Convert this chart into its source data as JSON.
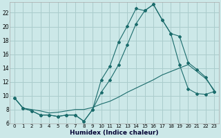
{
  "xlabel": "Humidex (Indice chaleur)",
  "background_color": "#cce8e8",
  "grid_color": "#aacccc",
  "line_color": "#1a6b6b",
  "xlim": [
    -0.5,
    23.5
  ],
  "ylim": [
    6,
    23.5
  ],
  "yticks": [
    6,
    8,
    10,
    12,
    14,
    16,
    18,
    20,
    22
  ],
  "xticks": [
    0,
    1,
    2,
    3,
    4,
    5,
    6,
    7,
    8,
    9,
    10,
    11,
    12,
    13,
    14,
    15,
    16,
    17,
    18,
    19,
    20,
    21,
    22,
    23
  ],
  "series1_x": [
    0,
    1,
    2,
    3,
    4,
    5,
    6,
    7,
    8,
    9,
    10,
    11,
    12,
    13,
    14,
    15,
    16,
    17,
    18,
    19,
    20,
    21,
    22,
    23
  ],
  "series1_y": [
    9.7,
    8.2,
    7.8,
    7.2,
    7.2,
    7.0,
    7.2,
    7.2,
    6.3,
    8.0,
    12.3,
    14.3,
    17.8,
    20.1,
    22.6,
    22.3,
    23.2,
    21.0,
    19.0,
    18.6,
    14.8,
    13.8,
    12.7,
    10.6
  ],
  "series2_x": [
    0,
    1,
    2,
    3,
    4,
    5,
    6,
    7,
    8,
    9,
    10,
    11,
    12,
    13,
    14,
    15,
    16,
    17,
    18,
    19,
    20,
    21,
    22,
    23
  ],
  "series2_y": [
    9.7,
    8.2,
    7.8,
    7.2,
    7.2,
    7.0,
    7.2,
    7.2,
    6.3,
    8.0,
    10.5,
    12.3,
    14.5,
    17.4,
    20.4,
    22.3,
    23.2,
    21.0,
    19.0,
    14.5,
    11.0,
    10.3,
    10.2,
    10.6
  ],
  "series3_x": [
    0,
    1,
    2,
    3,
    4,
    5,
    6,
    7,
    8,
    9,
    10,
    11,
    12,
    13,
    14,
    15,
    16,
    17,
    18,
    19,
    20,
    21,
    22,
    23
  ],
  "series3_y": [
    9.7,
    8.2,
    8.0,
    7.8,
    7.5,
    7.6,
    7.8,
    8.0,
    8.0,
    8.3,
    8.8,
    9.2,
    9.8,
    10.5,
    11.1,
    11.7,
    12.3,
    13.0,
    13.5,
    14.0,
    14.5,
    13.5,
    12.5,
    10.8
  ]
}
